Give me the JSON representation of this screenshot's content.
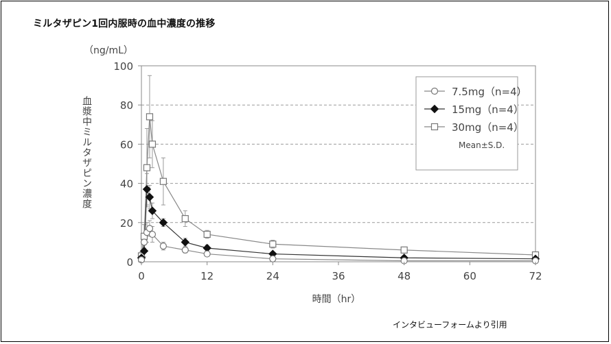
{
  "page": {
    "title": "ミルタザピン1回内服時の血中濃度の推移",
    "source_note": "インタビューフォームより引用"
  },
  "chart_data": {
    "type": "line",
    "title": "ミルタザピン1回内服時の血中濃度の推移",
    "xlabel": "時間（hr）",
    "ylabel": "血漿中ミルタザピン濃度",
    "y_unit": "（ng/mL）",
    "xlim": [
      0,
      72
    ],
    "ylim": [
      0,
      100
    ],
    "x_ticks": [
      0,
      12,
      24,
      36,
      48,
      60,
      72
    ],
    "y_ticks": [
      0,
      20,
      40,
      60,
      80,
      100
    ],
    "grid": "horizontal dashed",
    "legend_position": "top-right",
    "legend_note": "Mean±S.D.",
    "series": [
      {
        "name": "7.5mg（n=4）",
        "marker": "open-circle",
        "color": "#666666",
        "x": [
          0,
          0.5,
          1,
          1.5,
          2,
          4,
          8,
          12,
          24,
          48,
          72
        ],
        "y": [
          1,
          10,
          15,
          17,
          14,
          8,
          6,
          4,
          1.5,
          0.5,
          0.5
        ],
        "sd": [
          0.5,
          4,
          5,
          4,
          4,
          2,
          1.5,
          1,
          0.5,
          0.3,
          0.3
        ]
      },
      {
        "name": "15mg（n=4）",
        "marker": "filled-diamond",
        "color": "#111111",
        "x": [
          0,
          0.5,
          1,
          1.5,
          2,
          4,
          8,
          12,
          24,
          48,
          72
        ],
        "y": [
          2,
          5.5,
          37,
          33,
          26,
          20,
          10,
          7,
          4,
          2,
          1.5
        ],
        "sd": [
          1,
          3,
          8,
          6,
          4,
          2,
          2,
          1.5,
          1,
          0.5,
          0.5
        ]
      },
      {
        "name": "30mg（n=4）",
        "marker": "open-square",
        "color": "#888888",
        "x": [
          0,
          0.5,
          1,
          1.5,
          2,
          4,
          8,
          12,
          24,
          48,
          72
        ],
        "y": [
          3,
          13,
          48,
          74,
          60,
          41,
          22,
          14,
          9,
          6,
          3.5
        ],
        "sd": [
          2,
          6,
          20,
          21,
          12,
          12,
          4,
          2,
          2,
          1.5,
          1
        ]
      }
    ]
  }
}
